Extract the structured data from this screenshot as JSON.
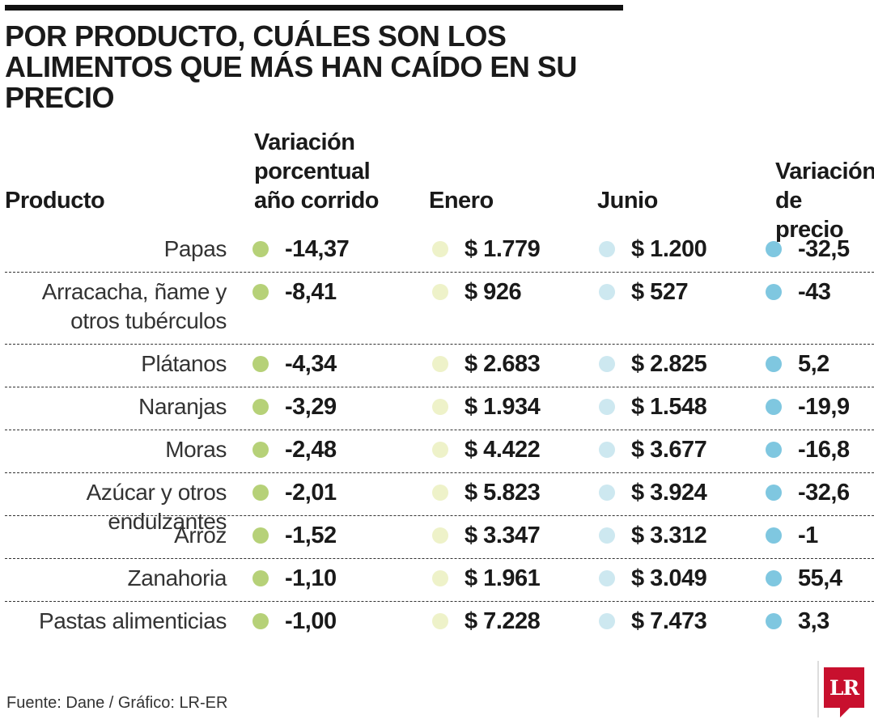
{
  "title": "POR PRODUCTO, CUÁLES SON LOS ALIMENTOS QUE MÁS HAN CAÍDO EN SU PRECIO",
  "columns": {
    "product": "Producto",
    "variation_ytd": "Variación porcentual año corrido",
    "january": "Enero",
    "june": "Junio",
    "price_variation": "Variación de precio"
  },
  "colors": {
    "variation_ytd": "#b6d178",
    "january": "#eef2c9",
    "june": "#cde8f0",
    "price_variation": "#7fc7e0"
  },
  "chart_data": {
    "type": "table",
    "rows": [
      {
        "product": "Papas",
        "variation_ytd": "-14,37",
        "january": "$ 1.779",
        "june": "$ 1.200",
        "price_variation": "-32,5"
      },
      {
        "product": "Arracacha, ñame y otros tubérculos",
        "variation_ytd": "-8,41",
        "january": "$ 926",
        "june": "$ 527",
        "price_variation": "-43"
      },
      {
        "product": "Plátanos",
        "variation_ytd": "-4,34",
        "january": "$ 2.683",
        "june": "$ 2.825",
        "price_variation": "5,2"
      },
      {
        "product": "Naranjas",
        "variation_ytd": "-3,29",
        "january": "$ 1.934",
        "june": "$ 1.548",
        "price_variation": "-19,9"
      },
      {
        "product": "Moras",
        "variation_ytd": "-2,48",
        "january": "$ 4.422",
        "june": "$ 3.677",
        "price_variation": "-16,8"
      },
      {
        "product": "Azúcar y otros endulzantes",
        "variation_ytd": "-2,01",
        "january": "$ 5.823",
        "june": "$ 3.924",
        "price_variation": "-32,6"
      },
      {
        "product": "Arroz",
        "variation_ytd": "-1,52",
        "january": "$ 3.347",
        "june": "$ 3.312",
        "price_variation": "-1"
      },
      {
        "product": "Zanahoria",
        "variation_ytd": "-1,10",
        "january": "$ 1.961",
        "june": "$ 3.049",
        "price_variation": "55,4"
      },
      {
        "product": "Pastas alimenticias",
        "variation_ytd": "-1,00",
        "january": "$ 7.228",
        "june": "$ 7.473",
        "price_variation": "3,3"
      }
    ]
  },
  "source": "Fuente: Dane / Gráfico: LR-ER",
  "logo": "LR"
}
